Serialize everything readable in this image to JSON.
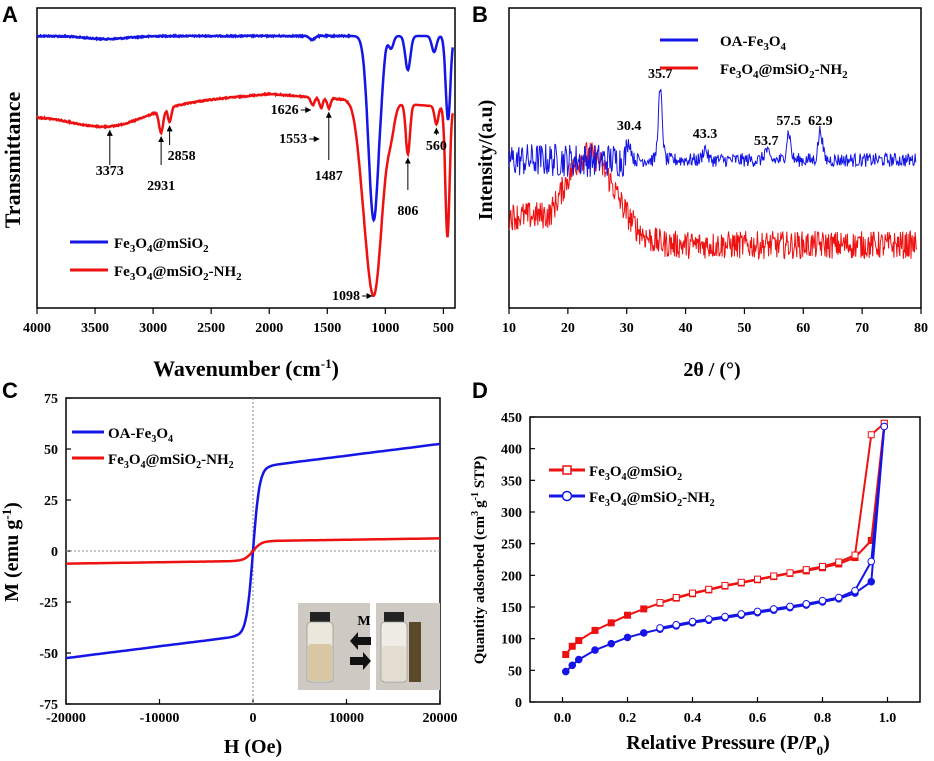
{
  "colors": {
    "blue": "#1515e6",
    "red": "#ee1111"
  },
  "chart_data": [
    {
      "panel": "A",
      "type": "line",
      "xlabel": "Wavenumber (cm",
      "xlabel_sup": "-1",
      "xlabel_end": ")",
      "ylabel": "Transmittance",
      "xlim": [
        4000,
        400
      ],
      "x_ticks": [
        4000,
        3500,
        3000,
        2500,
        2000,
        1500,
        1000,
        500
      ],
      "legend": [
        {
          "text": "Fe3O4@mSiO2",
          "color": "blue"
        },
        {
          "text": "Fe3O4@mSiO2-NH2",
          "color": "red"
        }
      ],
      "annotations": [
        {
          "text": "3373",
          "x": 3373
        },
        {
          "text": "2931",
          "x": 2931
        },
        {
          "text": "2858",
          "x": 2858
        },
        {
          "text": "1626",
          "x": 1626
        },
        {
          "text": "1553",
          "x": 1553
        },
        {
          "text": "1487",
          "x": 1487
        },
        {
          "text": "1098",
          "x": 1098
        },
        {
          "text": "806",
          "x": 806
        },
        {
          "text": "560",
          "x": 560
        }
      ]
    },
    {
      "panel": "B",
      "type": "line",
      "xlabel": "2θ / (°)",
      "ylabel": "Intensity/(a.u)",
      "xlim": [
        10,
        80
      ],
      "x_ticks": [
        10,
        20,
        30,
        40,
        50,
        60,
        70,
        80
      ],
      "legend": [
        {
          "text": "OA-Fe3O4",
          "color": "blue"
        },
        {
          "text": "Fe3O4@mSiO2-NH2",
          "color": "red"
        }
      ],
      "peaks": [
        {
          "text": "30.4",
          "x": 30.4
        },
        {
          "text": "35.7",
          "x": 35.7
        },
        {
          "text": "43.3",
          "x": 43.3
        },
        {
          "text": "53.7",
          "x": 53.7
        },
        {
          "text": "57.5",
          "x": 57.5
        },
        {
          "text": "62.9",
          "x": 62.9
        }
      ]
    },
    {
      "panel": "C",
      "type": "line",
      "xlabel": "H (Oe)",
      "ylabel": "M (emu g",
      "ylabel_sup": "-1",
      "ylabel_end": ")",
      "xlim": [
        -20000,
        20000
      ],
      "ylim": [
        -75,
        75
      ],
      "x_ticks": [
        -20000,
        -10000,
        0,
        10000,
        20000
      ],
      "y_ticks": [
        -75,
        -50,
        -25,
        0,
        25,
        50,
        75
      ],
      "legend": [
        {
          "text": "OA-Fe3O4",
          "color": "blue"
        },
        {
          "text": "Fe3O4@mSiO2-NH2",
          "color": "red"
        }
      ],
      "series": [
        {
          "name": "OA-Fe3O4",
          "color": "blue",
          "Ms": 52.5
        },
        {
          "name": "Fe3O4@mSiO2-NH2",
          "color": "red",
          "Ms": 6.2
        }
      ],
      "inset_label": "M"
    },
    {
      "panel": "D",
      "type": "line",
      "xlabel": "Relative Pressure (P/P",
      "xlabel_sub": "0",
      "xlabel_end": ")",
      "ylabel": "Quantity adsorbed (cm",
      "ylabel_sup": "3",
      "ylabel_mid": "g",
      "ylabel_sup2": "-1",
      "ylabel_end": " STP)",
      "xlim": [
        -0.1,
        1.1
      ],
      "ylim": [
        0,
        450
      ],
      "x_ticks": [
        0.0,
        0.2,
        0.4,
        0.6,
        0.8,
        1.0
      ],
      "y_ticks": [
        0,
        50,
        100,
        150,
        200,
        250,
        300,
        350,
        400,
        450
      ],
      "legend": [
        {
          "text": "Fe3O4@mSiO2",
          "color": "red"
        },
        {
          "text": "Fe3O4@mSiO2-NH2",
          "color": "blue"
        }
      ],
      "series": [
        {
          "name": "Fe3O4@mSiO2 adsorption",
          "color": "red",
          "x": [
            0.01,
            0.03,
            0.05,
            0.1,
            0.15,
            0.2,
            0.25,
            0.3,
            0.35,
            0.4,
            0.45,
            0.5,
            0.55,
            0.6,
            0.65,
            0.7,
            0.75,
            0.8,
            0.85,
            0.9,
            0.95,
            0.99
          ],
          "y": [
            75,
            88,
            97,
            113,
            125,
            137,
            147,
            156,
            164,
            171,
            177,
            183,
            188,
            193,
            198,
            203,
            207,
            212,
            218,
            228,
            255,
            440
          ]
        },
        {
          "name": "Fe3O4@mSiO2 desorption",
          "color": "red",
          "x": [
            0.99,
            0.95,
            0.9,
            0.85,
            0.8,
            0.75,
            0.7,
            0.65,
            0.6,
            0.55,
            0.5,
            0.45,
            0.4,
            0.35,
            0.3
          ],
          "y": [
            440,
            422,
            232,
            221,
            214,
            209,
            204,
            199,
            194,
            189,
            184,
            178,
            172,
            165,
            157
          ]
        },
        {
          "name": "Fe3O4@mSiO2-NH2 adsorption",
          "color": "blue",
          "x": [
            0.01,
            0.03,
            0.05,
            0.1,
            0.15,
            0.2,
            0.25,
            0.3,
            0.35,
            0.4,
            0.45,
            0.5,
            0.55,
            0.6,
            0.65,
            0.7,
            0.75,
            0.8,
            0.85,
            0.9,
            0.95,
            0.99
          ],
          "y": [
            48,
            58,
            67,
            82,
            92,
            102,
            109,
            115,
            120,
            125,
            129,
            133,
            137,
            141,
            145,
            149,
            153,
            158,
            163,
            172,
            190,
            435
          ]
        },
        {
          "name": "Fe3O4@mSiO2-NH2 desorption",
          "color": "blue",
          "x": [
            0.99,
            0.95,
            0.9,
            0.85,
            0.8,
            0.75,
            0.7,
            0.65,
            0.6,
            0.55,
            0.5,
            0.45,
            0.4,
            0.35,
            0.3
          ],
          "y": [
            435,
            222,
            176,
            165,
            160,
            155,
            151,
            147,
            143,
            139,
            135,
            131,
            127,
            122,
            117
          ]
        }
      ]
    }
  ]
}
